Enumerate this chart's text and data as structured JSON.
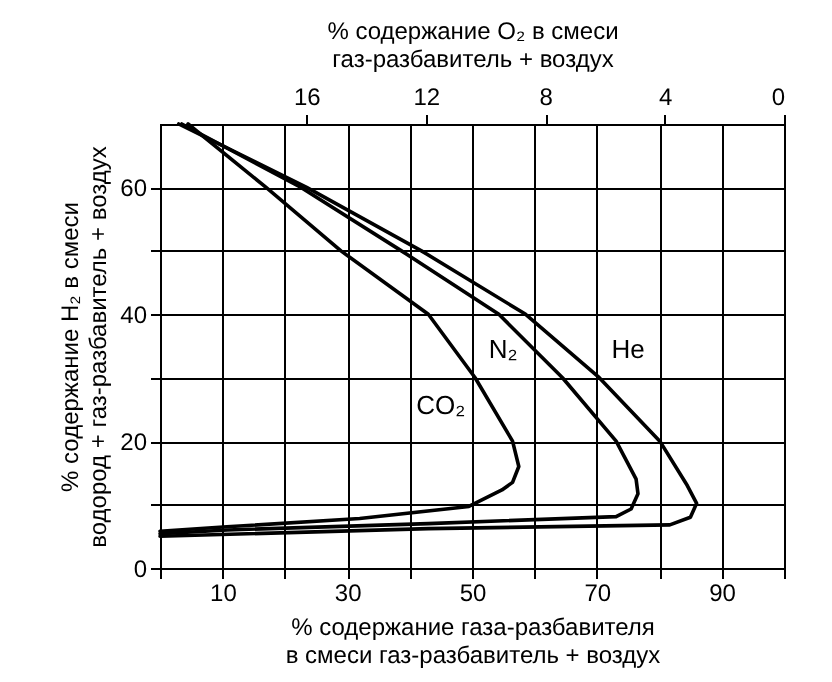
{
  "chart_data": {
    "type": "line",
    "xlabel": "% содержание газа-разбавителя\nв смеси газ-разбавитель + воздух",
    "ylabel": "% содержание H₂ в смеси\nводород + газ-разбавитель + воздух",
    "x2label": "% содержание O₂ в смеси\nгаз-разбавитель + воздух",
    "xlim": [
      0,
      100
    ],
    "xticks": [
      {
        "value": 0,
        "label": null
      },
      10,
      {
        "value": 20,
        "label": null
      },
      30,
      {
        "value": 40,
        "label": null
      },
      50,
      {
        "value": 60,
        "label": null
      },
      70,
      {
        "value": 80,
        "label": null
      },
      90,
      {
        "value": 100,
        "label": null
      }
    ],
    "ylim": [
      0,
      70
    ],
    "yticks": [
      0,
      {
        "value": 10,
        "label": null
      },
      20,
      {
        "value": 30,
        "label": null
      },
      40,
      {
        "value": 50,
        "label": null
      },
      60
    ],
    "x2lim": [
      20.9,
      0
    ],
    "x2ticks": [
      16,
      12,
      8,
      4,
      0
    ],
    "grid": true,
    "marker": "none",
    "line_style": "solid",
    "series": [
      {
        "name": "CO₂",
        "color": "#000000",
        "x": [
          4.5,
          17,
          29,
          43,
          50.5,
          56.5,
          57.5,
          56.5,
          54.8,
          49.5,
          32,
          10.7,
          0
        ],
        "values": [
          70,
          60,
          50,
          40,
          30,
          20,
          16,
          13.5,
          12.3,
          9.7,
          7.8,
          6.5,
          5.8
        ]
      },
      {
        "name": "N₂",
        "color": "#000000",
        "x": [
          3.5,
          22.6,
          38.7,
          54.3,
          64.5,
          73.1,
          76.3,
          76.6,
          75.5,
          73.1,
          43,
          10.8,
          0
        ],
        "values": [
          70,
          60,
          50,
          40,
          30,
          20,
          14,
          11.7,
          9.3,
          8.1,
          7,
          6,
          5.4
        ]
      },
      {
        "name": "He",
        "color": "#000000",
        "x": [
          3,
          23.5,
          41.9,
          58.6,
          70.4,
          80.1,
          84.5,
          86,
          85,
          81.7,
          43,
          0
        ],
        "values": [
          70,
          60,
          50,
          40,
          30,
          20,
          13,
          10.2,
          8,
          6.8,
          6.2,
          5
        ]
      }
    ]
  }
}
